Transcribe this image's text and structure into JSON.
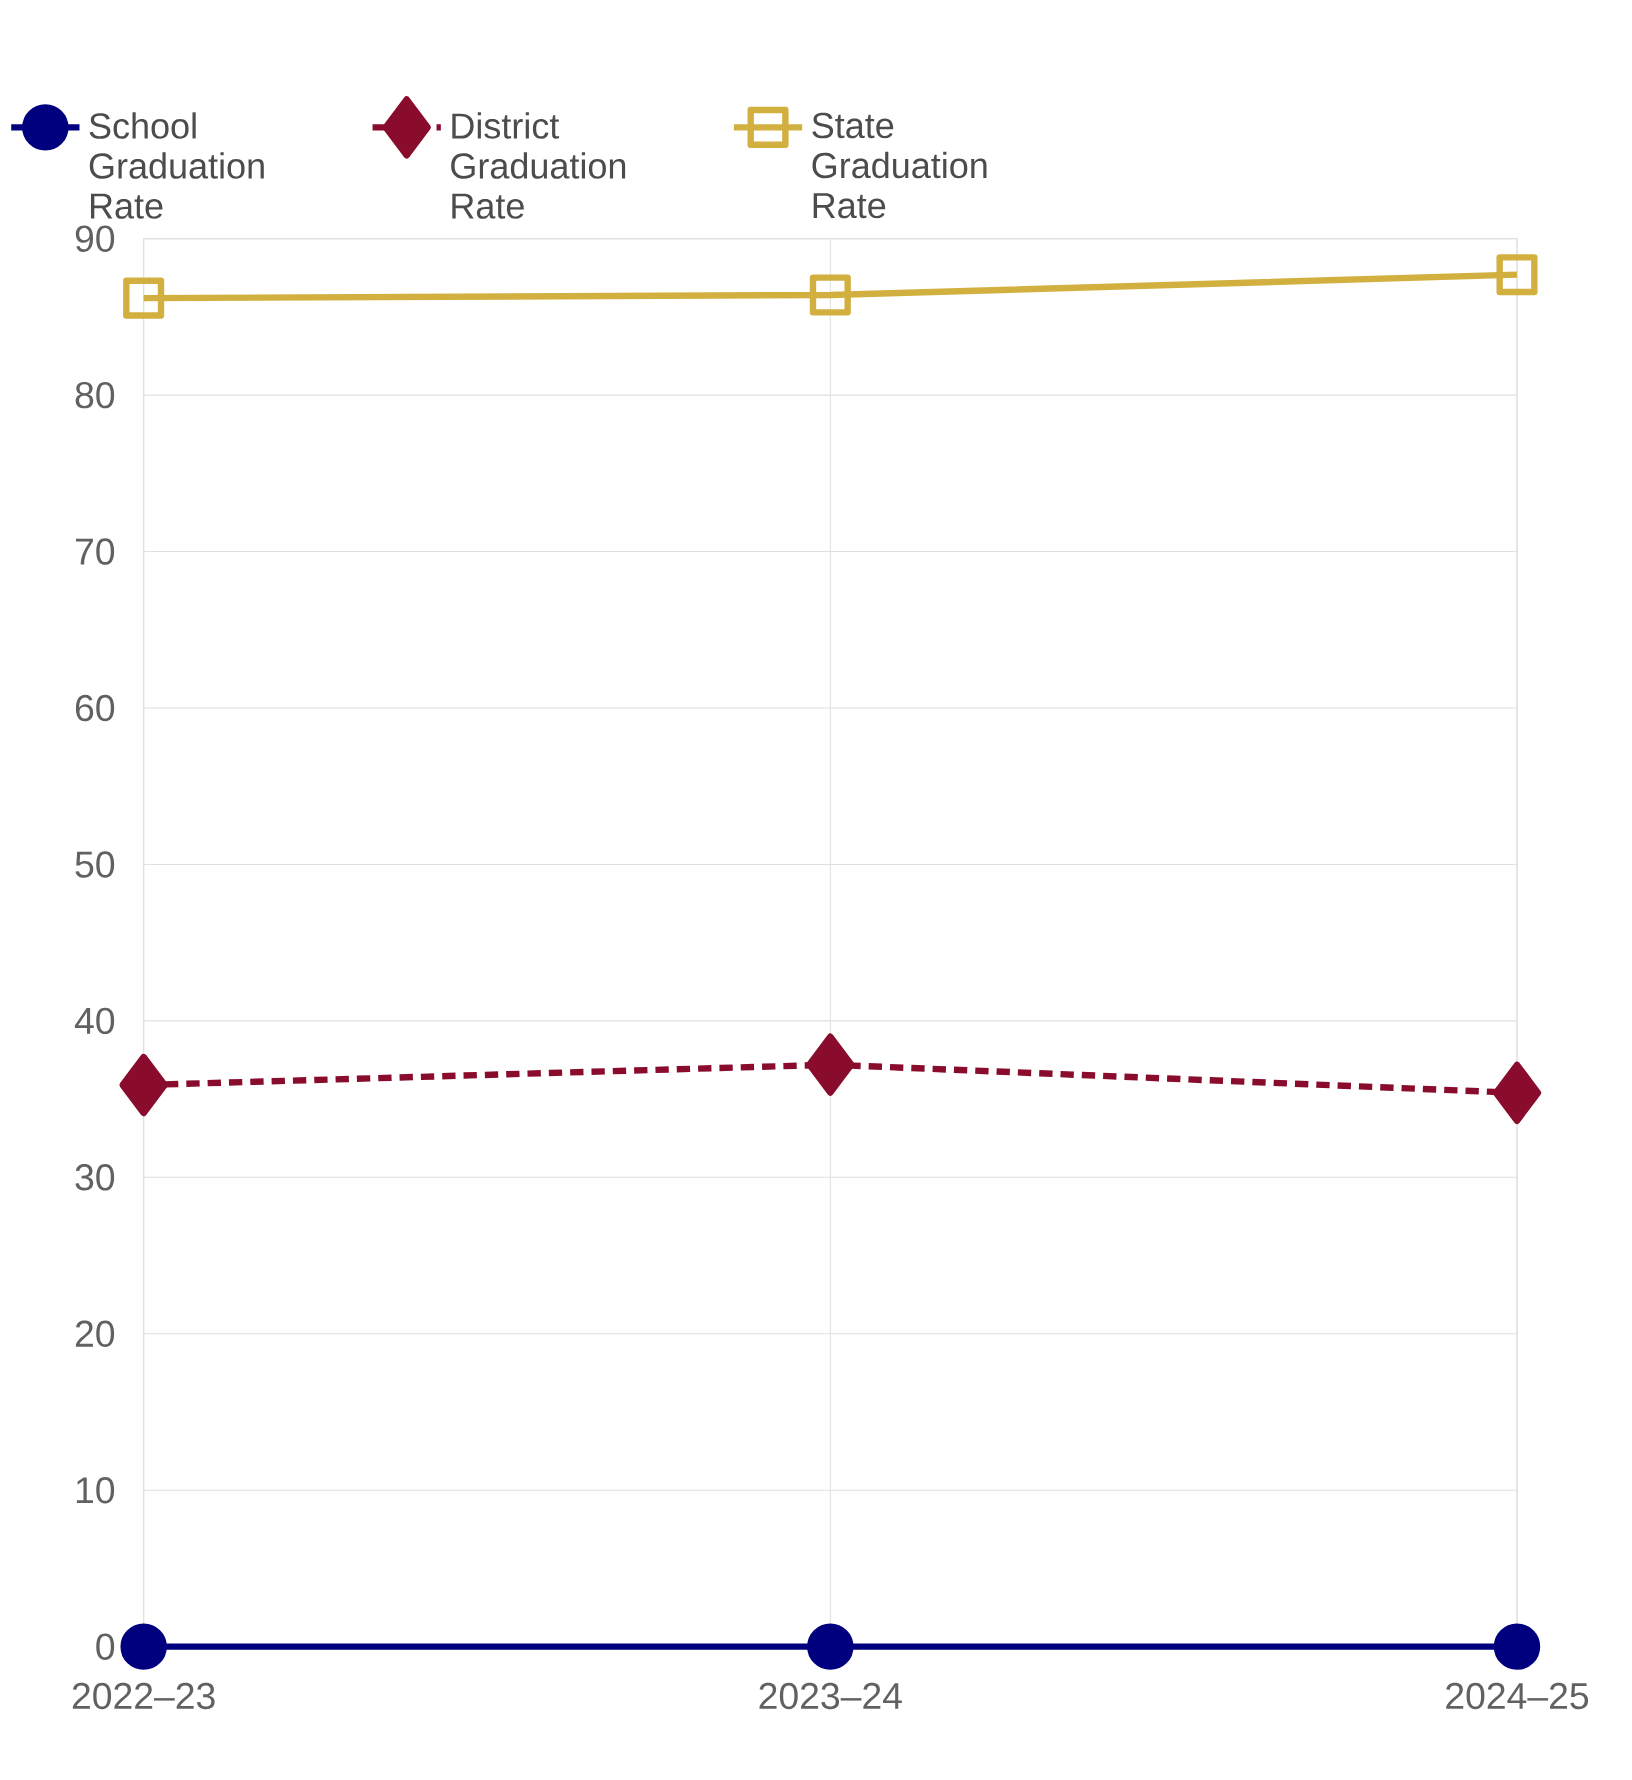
{
  "chart_data": {
    "type": "line",
    "categories": [
      "2022–23",
      "2023–24",
      "2024–25"
    ],
    "series": [
      {
        "name": "School Graduation Rate",
        "color": "#00007f",
        "values": [
          0,
          0,
          0
        ],
        "marker": "circle",
        "line_style": "solid"
      },
      {
        "name": "District Graduation Rate",
        "color": "#8a0c2c",
        "values": [
          35.9,
          37.2,
          35.4
        ],
        "marker": "diamond",
        "line_style": "dashed"
      },
      {
        "name": "State Graduation Rate",
        "color": "#d2b040",
        "values": [
          86.2,
          86.4,
          87.7
        ],
        "marker": "square",
        "line_style": "solid"
      }
    ],
    "ylim": [
      0,
      90
    ],
    "yticks": [
      0,
      10,
      20,
      30,
      40,
      50,
      60,
      70,
      80,
      90
    ],
    "grid": true,
    "legend": "top"
  }
}
